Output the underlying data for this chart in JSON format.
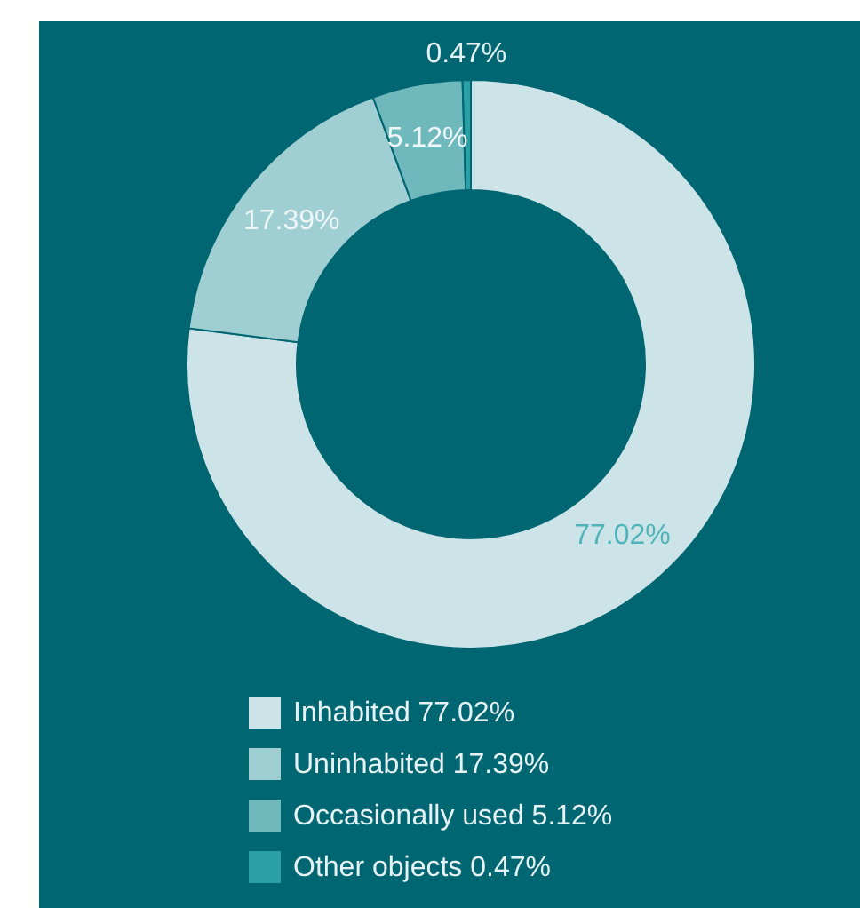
{
  "chart_data": {
    "type": "donut",
    "categories": [
      "Inhabited 77.02%",
      "Uninhabited 17.39%",
      "Occasionally used 5.12%",
      "Other objects 0.47%"
    ],
    "values": [
      77.02,
      17.39,
      5.12,
      0.47
    ],
    "value_labels": [
      "77.02%",
      "17.39%",
      "5.12%",
      "0.47%"
    ],
    "colors": [
      "#cce4e8",
      "#9fcfd2",
      "#6fb9bd",
      "#2aa0a5"
    ],
    "legend": "bottom"
  }
}
